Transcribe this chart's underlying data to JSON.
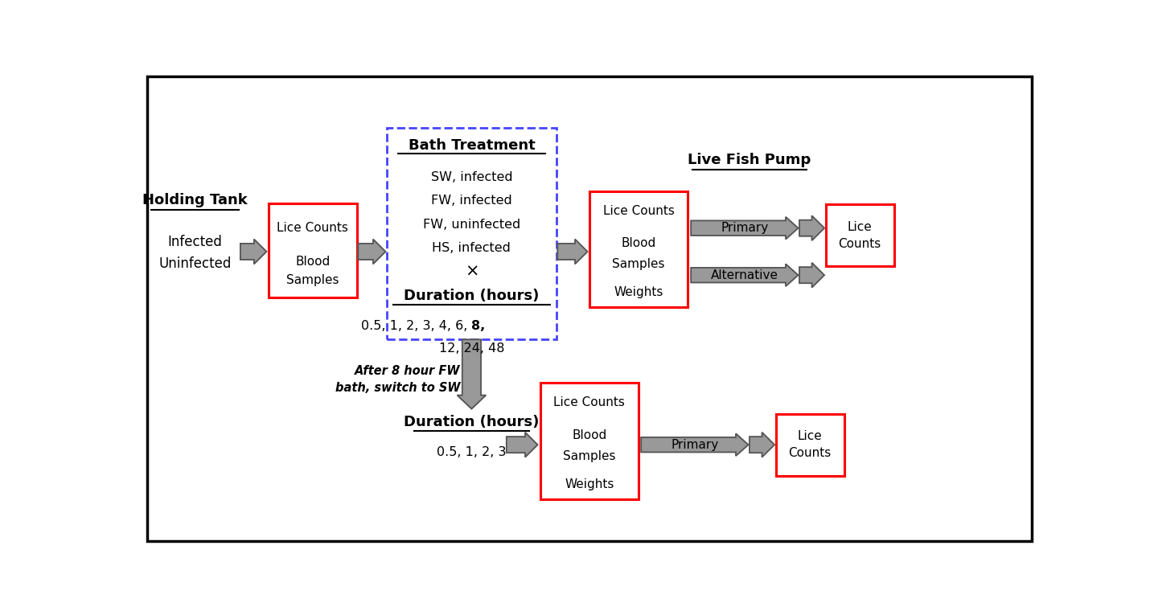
{
  "bg_color": "#ffffff",
  "border_color": "#000000",
  "red_box_color": "#ff0000",
  "blue_dash_color": "#4444ff",
  "arrow_color": "#999999",
  "arrow_edge_color": "#555555",
  "holding_tank_label": "Holding Tank",
  "holding_tank_sub1": "Infected",
  "holding_tank_sub2": "Uninfected",
  "bath_title": "Bath Treatment",
  "bath_lines": [
    "SW, infected",
    "FW, infected",
    "FW, uninfected",
    "HS, infected"
  ],
  "bath_cross": "×",
  "bath_duration_label": "Duration (hours)",
  "bath_duration_line1": "0.5, 1, 2, 3, 4, 6, ",
  "bath_duration_bold": "8,",
  "bath_duration_line2": "12, 24, 48",
  "live_pump_title": "Live Fish Pump",
  "pump_primary": "Primary",
  "pump_alternative": "Alternative",
  "lice_counts_text": "Lice\nCounts",
  "box1_line1": "Lice Counts",
  "box1_line2": "Blood",
  "box1_line3": "Samples",
  "boxA_line1": "Lice Counts",
  "boxA_line2": "Blood",
  "boxA_line3": "Samples",
  "boxA_line4": "Weights",
  "switch_note": "After 8 hour FW\nbath, switch to SW",
  "duration_B_label": "Duration (hours)",
  "duration_B_vals": "0.5, 1, 2, 3",
  "boxB_line1": "Lice Counts",
  "boxB_line2": "Blood",
  "boxB_line3": "Samples",
  "boxB_line4": "Weights",
  "pump_primary_B": "Primary"
}
